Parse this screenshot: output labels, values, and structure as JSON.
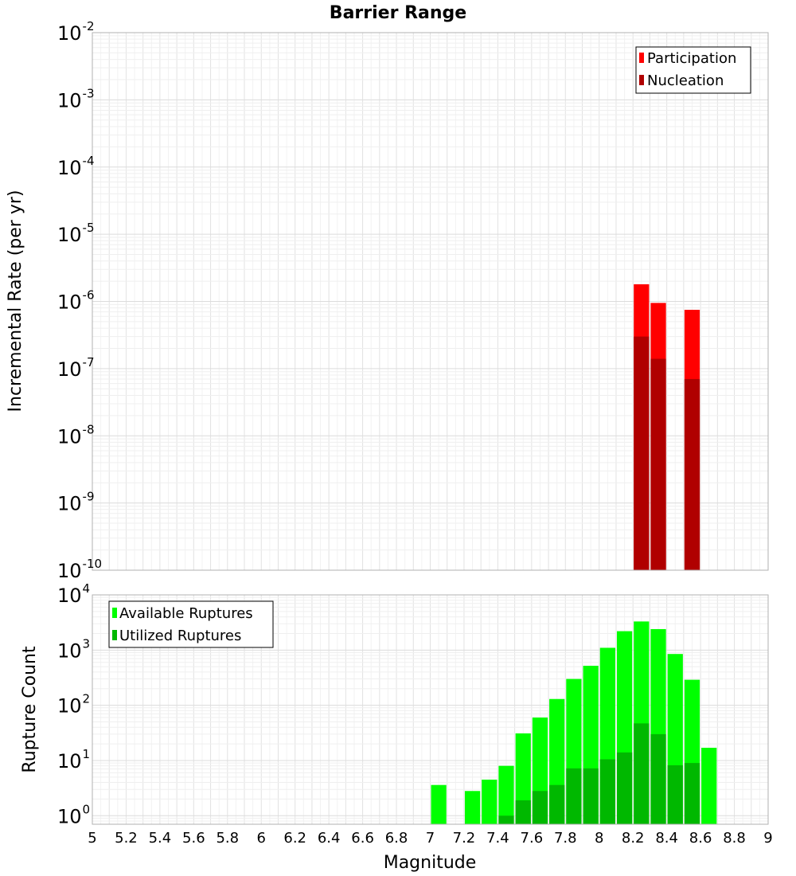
{
  "title": "Barrier Range",
  "xlabel": "Magnitude",
  "x_ticks": [
    "5",
    "5.2",
    "5.4",
    "5.6",
    "5.8",
    "6",
    "6.2",
    "6.4",
    "6.6",
    "6.8",
    "7",
    "7.2",
    "7.4",
    "7.6",
    "7.8",
    "8",
    "8.2",
    "8.4",
    "8.6",
    "8.8",
    "9"
  ],
  "chart_data": [
    {
      "type": "bar",
      "ylabel": "Incremental Rate (per yr)",
      "y_scale": "log",
      "xlim": [
        5,
        9
      ],
      "ylim": [
        1e-10,
        0.01
      ],
      "y_ticks": [
        {
          "base": "10",
          "exp": "-2"
        },
        {
          "base": "10",
          "exp": "-3"
        },
        {
          "base": "10",
          "exp": "-4"
        },
        {
          "base": "10",
          "exp": "-5"
        },
        {
          "base": "10",
          "exp": "-6"
        },
        {
          "base": "10",
          "exp": "-7"
        },
        {
          "base": "10",
          "exp": "-8"
        },
        {
          "base": "10",
          "exp": "-9"
        },
        {
          "base": "10",
          "exp": "-10"
        }
      ],
      "bar_width": 0.1,
      "grid": true,
      "legend_position": "top-right",
      "series": [
        {
          "name": "Participation",
          "color": "#ff0000",
          "x": [
            8.25,
            8.35,
            8.55
          ],
          "values": [
            1.8e-06,
            9.5e-07,
            7.5e-07
          ]
        },
        {
          "name": "Nucleation",
          "color": "#b00000",
          "x": [
            8.25,
            8.35,
            8.55
          ],
          "values": [
            3e-07,
            1.4e-07,
            7e-08
          ]
        }
      ]
    },
    {
      "type": "bar",
      "ylabel": "Rupture Count",
      "y_scale": "log",
      "xlim": [
        5,
        9
      ],
      "ylim": [
        0.7,
        10000
      ],
      "y_ticks": [
        {
          "base": "10",
          "exp": "4"
        },
        {
          "base": "10",
          "exp": "3"
        },
        {
          "base": "10",
          "exp": "2"
        },
        {
          "base": "10",
          "exp": "1"
        },
        {
          "base": "10",
          "exp": "0"
        }
      ],
      "bar_width": 0.1,
      "grid": true,
      "legend_position": "top-left",
      "series": [
        {
          "name": "Available Ruptures",
          "color": "#00ff00",
          "x": [
            7.05,
            7.25,
            7.35,
            7.45,
            7.55,
            7.65,
            7.75,
            7.85,
            7.95,
            8.05,
            8.15,
            8.25,
            8.35,
            8.45,
            8.55,
            8.65
          ],
          "values": [
            3.6,
            2.8,
            4.5,
            8.0,
            31,
            60,
            130,
            300,
            520,
            1100,
            2200,
            3300,
            2400,
            850,
            290,
            17
          ]
        },
        {
          "name": "Utilized Ruptures",
          "color": "#00b800",
          "x": [
            7.45,
            7.55,
            7.65,
            7.75,
            7.85,
            7.95,
            8.05,
            8.15,
            8.25,
            8.35,
            8.45,
            8.55
          ],
          "values": [
            1.0,
            1.9,
            2.8,
            3.6,
            7.2,
            7.2,
            10.5,
            14,
            47,
            30,
            8.2,
            9.0
          ]
        }
      ]
    }
  ]
}
